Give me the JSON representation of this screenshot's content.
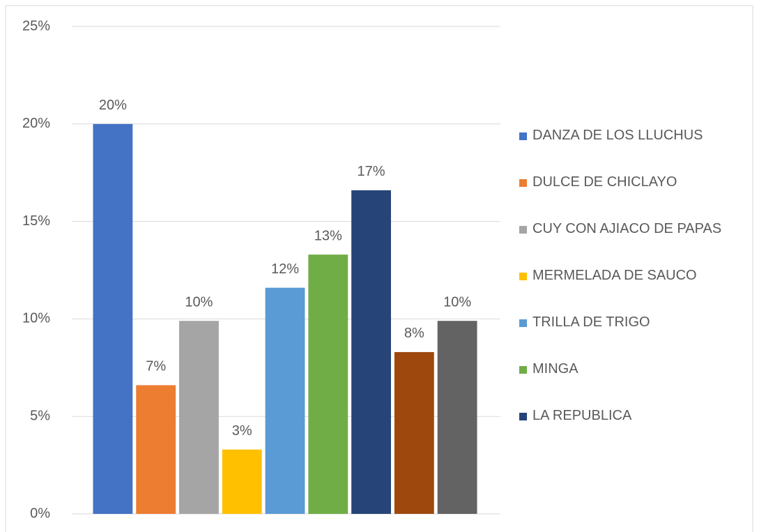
{
  "chart_data": {
    "type": "bar",
    "categories": [
      "DANZA DE LOS LLUCHUS",
      "DULCE DE CHICLAYO",
      "CUY CON AJIACO DE PAPAS",
      "MERMELADA DE SAUCO",
      "TRILLA DE TRIGO",
      "MINGA",
      "LA REPUBLICA",
      null,
      null
    ],
    "values": [
      20,
      6.6,
      9.9,
      3.3,
      11.6,
      13.3,
      16.6,
      8.3,
      9.9
    ],
    "value_labels": [
      "20%",
      "7%",
      "10%",
      "3%",
      "12%",
      "13%",
      "17%",
      "8%",
      "10%"
    ],
    "colors": [
      "#4472c4",
      "#ed7d31",
      "#a5a5a5",
      "#ffc000",
      "#5b9bd5",
      "#70ad47",
      "#264478",
      "#9e480e",
      "#636363"
    ],
    "ylim": [
      0,
      25
    ],
    "yticks": [
      {
        "value": 0,
        "label": "0%"
      },
      {
        "value": 5,
        "label": "5%"
      },
      {
        "value": 10,
        "label": "10%"
      },
      {
        "value": 15,
        "label": "15%"
      },
      {
        "value": 20,
        "label": "20%"
      },
      {
        "value": 25,
        "label": "25%"
      }
    ],
    "grid": true,
    "legend": "right"
  }
}
